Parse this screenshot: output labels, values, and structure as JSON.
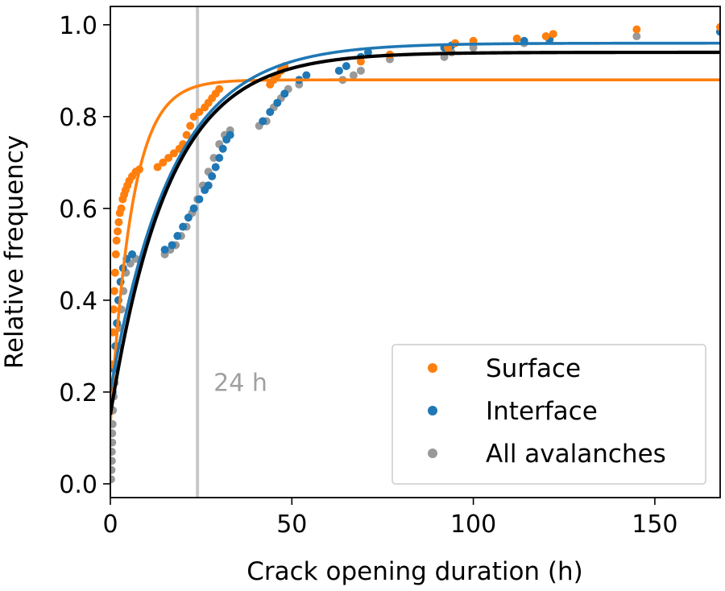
{
  "chart_data": {
    "type": "scatter",
    "xlabel": "Crack opening duration (h)",
    "ylabel": "Relative frequency",
    "xlim": [
      0,
      168
    ],
    "ylim": [
      -0.03,
      1.04
    ],
    "x_ticks": [
      0,
      50,
      100,
      150
    ],
    "x_tick_labels": [
      "0",
      "50",
      "100",
      "150"
    ],
    "y_ticks": [
      0.0,
      0.2,
      0.4,
      0.6,
      0.8,
      1.0
    ],
    "y_tick_labels": [
      "0.0",
      "0.2",
      "0.4",
      "0.6",
      "0.8",
      "1.0"
    ],
    "grid": false,
    "legend": {
      "placement": "bottom-right"
    },
    "annotations": [
      {
        "text": "24 h",
        "x": 24,
        "type": "vertical-line",
        "label_y": 0.22,
        "color": "#c8c8c8",
        "text_color": "#a0a0a0"
      }
    ],
    "series": [
      {
        "name": "Surface",
        "color": "#ff7f0e",
        "fit": {
          "form": "a*(1-b*exp(-x/tau))",
          "a": 0.88,
          "b": 0.85,
          "tau": 6
        },
        "points": [
          {
            "x": 0.5,
            "y": 0.26
          },
          {
            "x": 0.7,
            "y": 0.33
          },
          {
            "x": 0.9,
            "y": 0.38
          },
          {
            "x": 1.1,
            "y": 0.42
          },
          {
            "x": 1.3,
            "y": 0.46
          },
          {
            "x": 1.5,
            "y": 0.5
          },
          {
            "x": 1.7,
            "y": 0.53
          },
          {
            "x": 2.0,
            "y": 0.55
          },
          {
            "x": 2.3,
            "y": 0.57
          },
          {
            "x": 2.6,
            "y": 0.59
          },
          {
            "x": 3.0,
            "y": 0.6
          },
          {
            "x": 3.4,
            "y": 0.62
          },
          {
            "x": 3.8,
            "y": 0.63
          },
          {
            "x": 4.2,
            "y": 0.64
          },
          {
            "x": 4.7,
            "y": 0.65
          },
          {
            "x": 5.2,
            "y": 0.66
          },
          {
            "x": 6.0,
            "y": 0.67
          },
          {
            "x": 7.0,
            "y": 0.68
          },
          {
            "x": 8.0,
            "y": 0.685
          },
          {
            "x": 13.0,
            "y": 0.69
          },
          {
            "x": 14.5,
            "y": 0.7
          },
          {
            "x": 16.0,
            "y": 0.71
          },
          {
            "x": 17.5,
            "y": 0.72
          },
          {
            "x": 19.0,
            "y": 0.73
          },
          {
            "x": 20.0,
            "y": 0.74
          },
          {
            "x": 21.0,
            "y": 0.76
          },
          {
            "x": 22.0,
            "y": 0.78
          },
          {
            "x": 23.0,
            "y": 0.8
          },
          {
            "x": 24.5,
            "y": 0.81
          },
          {
            "x": 26.0,
            "y": 0.82
          },
          {
            "x": 27.0,
            "y": 0.83
          },
          {
            "x": 28.0,
            "y": 0.84
          },
          {
            "x": 29.0,
            "y": 0.85
          },
          {
            "x": 30.0,
            "y": 0.86
          },
          {
            "x": 44.0,
            "y": 0.87
          },
          {
            "x": 45.0,
            "y": 0.88
          },
          {
            "x": 46.0,
            "y": 0.89
          },
          {
            "x": 47.0,
            "y": 0.9
          },
          {
            "x": 48.0,
            "y": 0.91
          },
          {
            "x": 69.0,
            "y": 0.92
          },
          {
            "x": 77.0,
            "y": 0.935
          },
          {
            "x": 93.0,
            "y": 0.95
          },
          {
            "x": 95.0,
            "y": 0.96
          },
          {
            "x": 100.0,
            "y": 0.965
          },
          {
            "x": 112.0,
            "y": 0.97
          },
          {
            "x": 120.0,
            "y": 0.975
          },
          {
            "x": 122.0,
            "y": 0.98
          },
          {
            "x": 145.0,
            "y": 0.99
          },
          {
            "x": 168.0,
            "y": 0.995
          }
        ]
      },
      {
        "name": "Interface",
        "color": "#1f77b4",
        "fit": {
          "form": "a*(1-b*exp(-x/tau))",
          "a": 0.96,
          "b": 0.79,
          "tau": 17
        },
        "points": [
          {
            "x": 0.6,
            "y": 0.2
          },
          {
            "x": 1.0,
            "y": 0.25
          },
          {
            "x": 1.4,
            "y": 0.3
          },
          {
            "x": 1.8,
            "y": 0.35
          },
          {
            "x": 2.2,
            "y": 0.4
          },
          {
            "x": 2.8,
            "y": 0.44
          },
          {
            "x": 3.5,
            "y": 0.47
          },
          {
            "x": 4.5,
            "y": 0.49
          },
          {
            "x": 6.0,
            "y": 0.5
          },
          {
            "x": 15.0,
            "y": 0.51
          },
          {
            "x": 17.0,
            "y": 0.52
          },
          {
            "x": 18.5,
            "y": 0.54
          },
          {
            "x": 20.0,
            "y": 0.56
          },
          {
            "x": 21.5,
            "y": 0.58
          },
          {
            "x": 23.0,
            "y": 0.6
          },
          {
            "x": 24.5,
            "y": 0.62
          },
          {
            "x": 26.0,
            "y": 0.64
          },
          {
            "x": 27.0,
            "y": 0.65
          },
          {
            "x": 28.0,
            "y": 0.67
          },
          {
            "x": 29.0,
            "y": 0.69
          },
          {
            "x": 30.0,
            "y": 0.71
          },
          {
            "x": 31.0,
            "y": 0.73
          },
          {
            "x": 32.0,
            "y": 0.75
          },
          {
            "x": 33.0,
            "y": 0.76
          },
          {
            "x": 42.0,
            "y": 0.79
          },
          {
            "x": 44.0,
            "y": 0.81
          },
          {
            "x": 46.0,
            "y": 0.83
          },
          {
            "x": 48.0,
            "y": 0.85
          },
          {
            "x": 52.0,
            "y": 0.88
          },
          {
            "x": 54.0,
            "y": 0.89
          },
          {
            "x": 63.0,
            "y": 0.9
          },
          {
            "x": 65.0,
            "y": 0.91
          },
          {
            "x": 69.0,
            "y": 0.93
          },
          {
            "x": 71.0,
            "y": 0.94
          },
          {
            "x": 77.0,
            "y": 0.935
          },
          {
            "x": 92.0,
            "y": 0.95
          },
          {
            "x": 94.0,
            "y": 0.955
          },
          {
            "x": 114.0,
            "y": 0.965
          },
          {
            "x": 121.0,
            "y": 0.97
          },
          {
            "x": 168.0,
            "y": 0.985
          }
        ]
      },
      {
        "name": "All avalanches",
        "color": "#999999",
        "fit": {
          "form": "a*(1-b*exp(-x/tau))",
          "a": 0.94,
          "b": 0.84,
          "tau": 16
        },
        "points": [
          {
            "x": 0.2,
            "y": 0.01
          },
          {
            "x": 0.3,
            "y": 0.03
          },
          {
            "x": 0.4,
            "y": 0.05
          },
          {
            "x": 0.4,
            "y": 0.07
          },
          {
            "x": 0.5,
            "y": 0.09
          },
          {
            "x": 0.5,
            "y": 0.11
          },
          {
            "x": 0.6,
            "y": 0.13
          },
          {
            "x": 0.7,
            "y": 0.16
          },
          {
            "x": 0.9,
            "y": 0.19
          },
          {
            "x": 1.2,
            "y": 0.22
          },
          {
            "x": 1.6,
            "y": 0.26
          },
          {
            "x": 2.0,
            "y": 0.3
          },
          {
            "x": 2.5,
            "y": 0.34
          },
          {
            "x": 3.0,
            "y": 0.38
          },
          {
            "x": 3.6,
            "y": 0.42
          },
          {
            "x": 4.3,
            "y": 0.46
          },
          {
            "x": 5.5,
            "y": 0.48
          },
          {
            "x": 7.0,
            "y": 0.49
          },
          {
            "x": 15.0,
            "y": 0.5
          },
          {
            "x": 16.5,
            "y": 0.51
          },
          {
            "x": 18.0,
            "y": 0.52
          },
          {
            "x": 19.5,
            "y": 0.54
          },
          {
            "x": 21.0,
            "y": 0.56
          },
          {
            "x": 22.5,
            "y": 0.59
          },
          {
            "x": 24.0,
            "y": 0.62
          },
          {
            "x": 25.5,
            "y": 0.65
          },
          {
            "x": 27.0,
            "y": 0.68
          },
          {
            "x": 28.5,
            "y": 0.71
          },
          {
            "x": 30.0,
            "y": 0.74
          },
          {
            "x": 31.5,
            "y": 0.76
          },
          {
            "x": 33.0,
            "y": 0.77
          },
          {
            "x": 41.0,
            "y": 0.78
          },
          {
            "x": 43.0,
            "y": 0.79
          },
          {
            "x": 45.0,
            "y": 0.82
          },
          {
            "x": 47.0,
            "y": 0.84
          },
          {
            "x": 49.0,
            "y": 0.86
          },
          {
            "x": 52.0,
            "y": 0.87
          },
          {
            "x": 64.0,
            "y": 0.88
          },
          {
            "x": 67.0,
            "y": 0.89
          },
          {
            "x": 69.0,
            "y": 0.9
          },
          {
            "x": 77.0,
            "y": 0.925
          },
          {
            "x": 92.0,
            "y": 0.93
          },
          {
            "x": 94.0,
            "y": 0.94
          },
          {
            "x": 100.0,
            "y": 0.95
          },
          {
            "x": 114.0,
            "y": 0.96
          },
          {
            "x": 121.0,
            "y": 0.965
          },
          {
            "x": 145.0,
            "y": 0.975
          },
          {
            "x": 168.0,
            "y": 0.985
          }
        ]
      }
    ]
  }
}
